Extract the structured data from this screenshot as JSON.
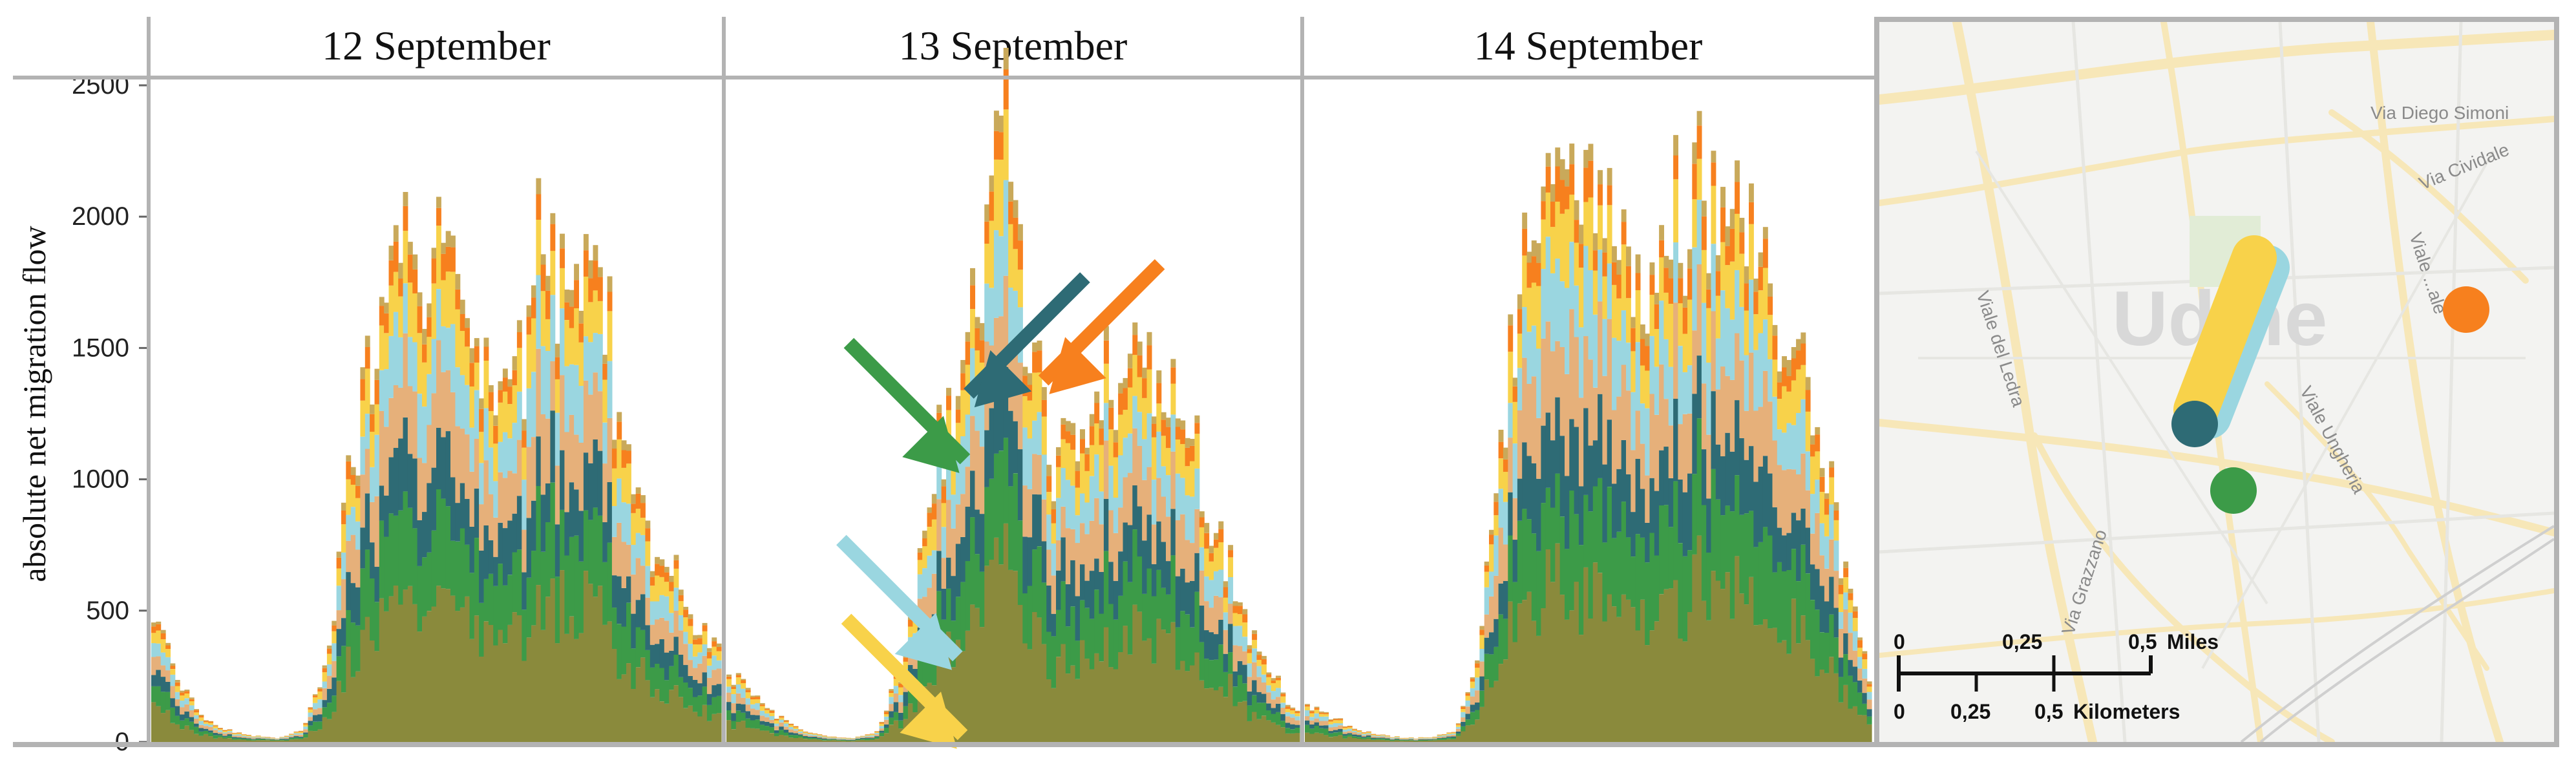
{
  "colors": {
    "dark_teal": "#2e6b75",
    "orange": "#f7801e",
    "green": "#3c9b48",
    "light_blue": "#9ad6e0",
    "yellow": "#f8d24a",
    "olive": "#8a8a3c",
    "tan": "#e6b07a",
    "panel_border": "#b3b3b3"
  },
  "chart_data": {
    "type": "area",
    "stacked": true,
    "ylabel": "absolute net migration flow",
    "ylim": [
      0,
      2500
    ],
    "yticks": [
      0,
      500,
      1000,
      1500,
      2000,
      2500
    ],
    "facets": [
      {
        "title": "12 September",
        "total_profile": [
          [
            0,
            480
          ],
          [
            1,
            240
          ],
          [
            2,
            90
          ],
          [
            3,
            40
          ],
          [
            4,
            25
          ],
          [
            5,
            15
          ],
          [
            6,
            40
          ],
          [
            7,
            300
          ],
          [
            8,
            1100
          ],
          [
            9,
            1550
          ],
          [
            10,
            1800
          ],
          [
            11,
            1880
          ],
          [
            12,
            1750
          ],
          [
            13,
            1450
          ],
          [
            14,
            1300
          ],
          [
            15,
            1600
          ],
          [
            16,
            1800
          ],
          [
            17,
            1900
          ],
          [
            18,
            1700
          ],
          [
            19,
            1200
          ],
          [
            20,
            800
          ],
          [
            21,
            600
          ],
          [
            22,
            450
          ],
          [
            23,
            300
          ]
        ]
      },
      {
        "title": "13 September",
        "total_profile": [
          [
            0,
            280
          ],
          [
            1,
            180
          ],
          [
            2,
            90
          ],
          [
            3,
            40
          ],
          [
            4,
            20
          ],
          [
            5,
            15
          ],
          [
            6,
            40
          ],
          [
            7,
            300
          ],
          [
            8,
            950
          ],
          [
            9,
            1300
          ],
          [
            10,
            1600
          ],
          [
            11,
            2450
          ],
          [
            12,
            1400
          ],
          [
            13,
            1100
          ],
          [
            14,
            1100
          ],
          [
            15,
            1400
          ],
          [
            16,
            1450
          ],
          [
            17,
            1420
          ],
          [
            18,
            1250
          ],
          [
            19,
            1000
          ],
          [
            20,
            700
          ],
          [
            21,
            400
          ],
          [
            22,
            220
          ],
          [
            23,
            100
          ]
        ]
      },
      {
        "title": "14 September",
        "total_profile": [
          [
            0,
            150
          ],
          [
            1,
            100
          ],
          [
            2,
            50
          ],
          [
            3,
            25
          ],
          [
            4,
            15
          ],
          [
            5,
            15
          ],
          [
            6,
            40
          ],
          [
            7,
            350
          ],
          [
            8,
            1400
          ],
          [
            9,
            1900
          ],
          [
            10,
            2150
          ],
          [
            11,
            2250
          ],
          [
            12,
            2100
          ],
          [
            13,
            1800
          ],
          [
            14,
            1750
          ],
          [
            15,
            2000
          ],
          [
            16,
            2150
          ],
          [
            17,
            2100
          ],
          [
            18,
            1950
          ],
          [
            19,
            1700
          ],
          [
            20,
            1400
          ],
          [
            21,
            1100
          ],
          [
            22,
            600
          ],
          [
            23,
            200
          ]
        ]
      }
    ],
    "series_colors": [
      "#8a8a3c",
      "#3c9b48",
      "#2e6b75",
      "#e6b07a",
      "#9ad6e0",
      "#f8d24a",
      "#f7801e",
      "#c9a95a"
    ],
    "annotations": [
      {
        "facet": 1,
        "color": "#3c9b48",
        "points_to": [
          8.8,
          1150
        ]
      },
      {
        "facet": 1,
        "color": "#2e6b75",
        "points_to": [
          10.5,
          1400
        ]
      },
      {
        "facet": 1,
        "color": "#f7801e",
        "points_to": [
          13.5,
          1450
        ]
      },
      {
        "facet": 1,
        "color": "#9ad6e0",
        "points_to": [
          8.5,
          400
        ]
      },
      {
        "facet": 1,
        "color": "#f8d24a",
        "points_to": [
          8.7,
          100
        ]
      }
    ]
  },
  "map": {
    "city_label": "Udine",
    "streets": [
      "Via Diego Simoni",
      "Via Cividale",
      "Viale del Ledra",
      "Viale Ungheria",
      "Via Grazzano",
      "Viale ...ale"
    ],
    "scale_miles": {
      "labels": [
        "0",
        "0,25",
        "0,5"
      ],
      "unit": "Miles"
    },
    "scale_km": {
      "labels": [
        "0",
        "0,25",
        "0,5"
      ],
      "unit": "Kilometers"
    }
  }
}
